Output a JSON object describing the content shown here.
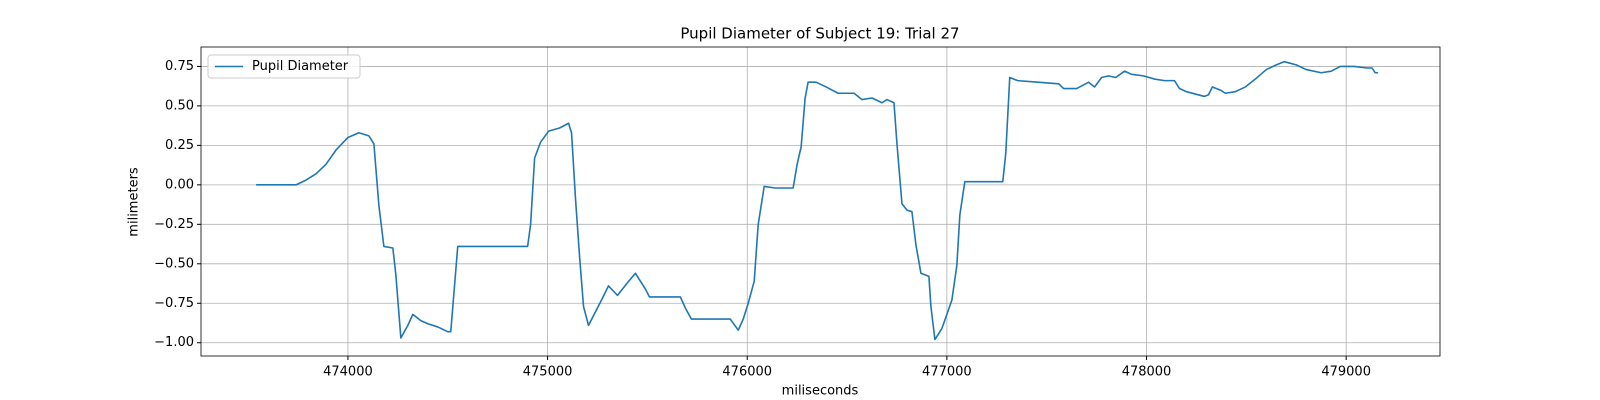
{
  "chart_data": {
    "type": "line",
    "title": "Pupil Diameter of Subject 19: Trial 27",
    "x_label": "miliseconds",
    "y_label": "milimeters",
    "legend": "upper left",
    "grid": true,
    "xlim": [
      473264,
      479470
    ],
    "ylim": [
      -1.084,
      0.873
    ],
    "xticks": [
      474000,
      475000,
      476000,
      477000,
      478000,
      479000
    ],
    "yticks": [
      {
        "value": -1.0,
        "label": "−1.00"
      },
      {
        "value": -0.75,
        "label": "−0.75"
      },
      {
        "value": -0.5,
        "label": "−0.50"
      },
      {
        "value": -0.25,
        "label": "−0.25"
      },
      {
        "value": 0,
        "label": "0.00"
      },
      {
        "value": 0.25,
        "label": "0.25"
      },
      {
        "value": 0.5,
        "label": "0.50"
      },
      {
        "value": 0.75,
        "label": "0.75"
      }
    ],
    "x": [
      473540,
      473740,
      473790,
      473840,
      473890,
      473940,
      474000,
      474055,
      474105,
      474130,
      474155,
      474180,
      474225,
      474240,
      474265,
      474300,
      474325,
      474365,
      474400,
      474450,
      474500,
      474515,
      474530,
      474550,
      474650,
      474900,
      474915,
      474935,
      474965,
      475005,
      475060,
      475105,
      475120,
      475140,
      475160,
      475180,
      475205,
      475270,
      475305,
      475350,
      475400,
      475440,
      475465,
      475490,
      475510,
      475665,
      475690,
      475720,
      475915,
      475955,
      475980,
      476005,
      476035,
      476055,
      476085,
      476140,
      476230,
      476250,
      476270,
      476290,
      476305,
      476345,
      476395,
      476455,
      476535,
      476575,
      476625,
      476675,
      476700,
      476735,
      476750,
      476775,
      476800,
      476825,
      476845,
      476870,
      476910,
      476920,
      476940,
      476975,
      477025,
      477050,
      477065,
      477090,
      477280,
      477295,
      477315,
      477355,
      477455,
      477560,
      477585,
      477650,
      477710,
      477740,
      477775,
      477810,
      477845,
      477890,
      477925,
      477985,
      478040,
      478090,
      478140,
      478165,
      478200,
      478290,
      478310,
      478330,
      478370,
      478395,
      478445,
      478495,
      478545,
      478600,
      478650,
      478690,
      478750,
      478800,
      478875,
      478925,
      478970,
      479000,
      479040,
      479105,
      479130,
      479145,
      479160
    ],
    "series": [
      {
        "name": "Pupil Diameter",
        "color": "#1f77b4",
        "values": [
          0.0,
          0.0,
          0.03,
          0.07,
          0.13,
          0.22,
          0.3,
          0.33,
          0.31,
          0.26,
          -0.13,
          -0.39,
          -0.4,
          -0.57,
          -0.97,
          -0.89,
          -0.82,
          -0.86,
          -0.88,
          -0.9,
          -0.93,
          -0.93,
          -0.7,
          -0.39,
          -0.39,
          -0.39,
          -0.25,
          0.17,
          0.27,
          0.34,
          0.36,
          0.39,
          0.33,
          -0.09,
          -0.45,
          -0.77,
          -0.89,
          -0.73,
          -0.64,
          -0.7,
          -0.62,
          -0.56,
          -0.61,
          -0.66,
          -0.71,
          -0.71,
          -0.78,
          -0.85,
          -0.85,
          -0.92,
          -0.85,
          -0.75,
          -0.61,
          -0.25,
          -0.01,
          -0.02,
          -0.02,
          0.13,
          0.24,
          0.55,
          0.65,
          0.65,
          0.62,
          0.58,
          0.58,
          0.54,
          0.55,
          0.52,
          0.54,
          0.52,
          0.26,
          -0.12,
          -0.16,
          -0.17,
          -0.38,
          -0.56,
          -0.58,
          -0.77,
          -0.98,
          -0.91,
          -0.73,
          -0.51,
          -0.19,
          0.02,
          0.02,
          0.2,
          0.68,
          0.66,
          0.65,
          0.64,
          0.61,
          0.61,
          0.65,
          0.62,
          0.68,
          0.69,
          0.68,
          0.72,
          0.7,
          0.69,
          0.67,
          0.66,
          0.66,
          0.61,
          0.59,
          0.56,
          0.57,
          0.62,
          0.6,
          0.58,
          0.59,
          0.62,
          0.67,
          0.73,
          0.76,
          0.78,
          0.76,
          0.73,
          0.71,
          0.72,
          0.75,
          0.75,
          0.75,
          0.74,
          0.74,
          0.71,
          0.71
        ]
      }
    ]
  }
}
